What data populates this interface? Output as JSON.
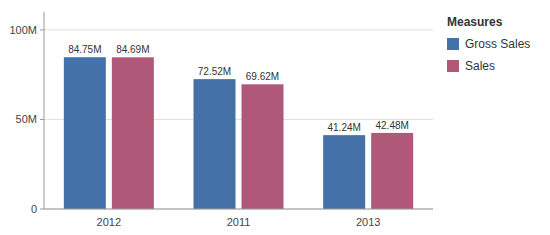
{
  "chart_data": {
    "type": "bar",
    "categories": [
      "2012",
      "2011",
      "2013"
    ],
    "series": [
      {
        "name": "Gross Sales",
        "color": "#4472a8",
        "values": [
          84.75,
          72.52,
          41.24
        ],
        "value_labels": [
          "84.75M",
          "72.52M",
          "41.24M"
        ]
      },
      {
        "name": "Sales",
        "color": "#b05878",
        "values": [
          84.69,
          69.62,
          42.48
        ],
        "value_labels": [
          "84.69M",
          "69.62M",
          "42.48M"
        ]
      }
    ],
    "ylim": [
      0,
      110
    ],
    "yticks": [
      0,
      {
        "value": 50,
        "label": "50M"
      },
      {
        "value": 100,
        "label": "100M"
      }
    ],
    "grid": true,
    "legend": "right",
    "legend_title": "Measures",
    "data_labels": true
  }
}
